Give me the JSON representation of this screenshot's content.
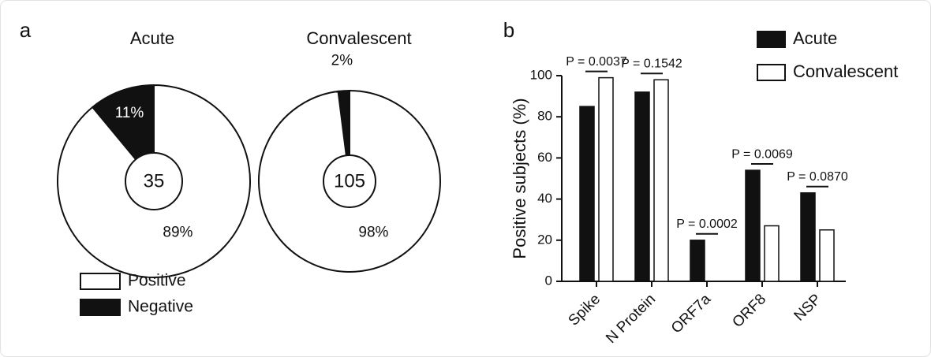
{
  "chart_data": [
    {
      "type": "donut",
      "panel_label": "a",
      "title": "Acute",
      "center_label": 35,
      "categories": [
        "Positive",
        "Negative"
      ],
      "values": [
        89,
        11
      ],
      "value_labels": [
        "89%",
        "11%"
      ],
      "colors": [
        "#ffffff",
        "#111111"
      ]
    },
    {
      "type": "donut",
      "title": "Convalescent",
      "center_label": 105,
      "categories": [
        "Positive",
        "Negative"
      ],
      "values": [
        98,
        2
      ],
      "value_labels": [
        "98%",
        "2%"
      ],
      "colors": [
        "#ffffff",
        "#111111"
      ]
    },
    {
      "type": "bar",
      "panel_label": "b",
      "y_label": "Positive subjects (%)",
      "categories": [
        "Spike",
        "N Protein",
        "ORF7a",
        "ORF8",
        "NSP"
      ],
      "series": [
        {
          "name": "Acute",
          "color": "#111111",
          "values": [
            85,
            92,
            20,
            54,
            43
          ]
        },
        {
          "name": "Convalescent",
          "color": "#ffffff",
          "values": [
            99,
            98,
            0,
            27,
            25
          ]
        }
      ],
      "annotations": [
        "P = 0.0037",
        "P = 0.1542",
        "P = 0.0002",
        "P = 0.0069",
        "P = 0.0870"
      ],
      "ylim": [
        0,
        100
      ],
      "yticks": [
        0,
        20,
        40,
        60,
        80,
        100
      ]
    }
  ]
}
